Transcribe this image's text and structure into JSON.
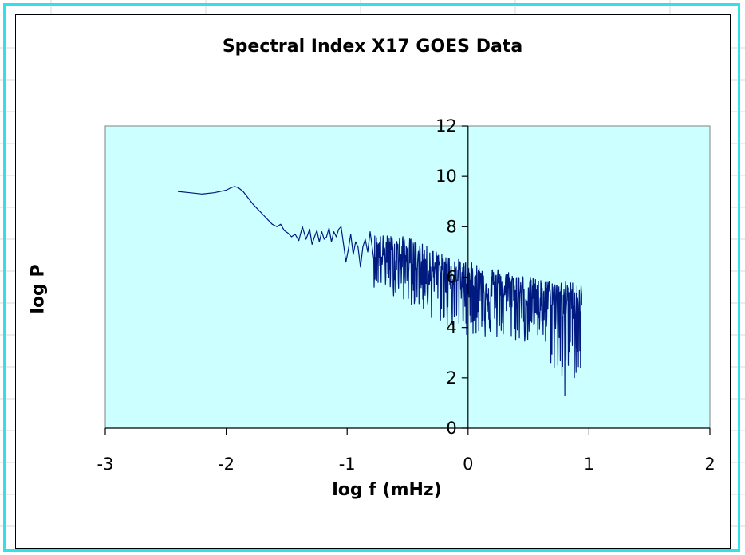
{
  "colors": {
    "plot_background": "#ccffff",
    "series_line": "#001a80",
    "selection_border": "#33e0e8",
    "sheet_gridline": "#d9d9d9"
  },
  "chart_data": {
    "type": "line",
    "title": "Spectral Index X17 GOES Data",
    "xlabel": "log f (mHz)",
    "ylabel": "log P",
    "xlim": [
      -3,
      2
    ],
    "ylim": [
      0,
      12
    ],
    "x_ticks": [
      "-3",
      "-2",
      "-1",
      "0",
      "1",
      "2"
    ],
    "y_ticks": [
      "0",
      "2",
      "4",
      "6",
      "8",
      "10",
      "12"
    ],
    "x_tick_values": [
      -3,
      -2,
      -1,
      0,
      1,
      2
    ],
    "y_tick_values": [
      0,
      2,
      4,
      6,
      8,
      10,
      12
    ],
    "grid": false,
    "legend": "none",
    "axes_cross_at": [
      0,
      0
    ],
    "series": [
      {
        "x": [
          -2.4,
          -2.3,
          -2.2,
          -2.1,
          -2.0,
          -1.96,
          -1.93,
          -1.9,
          -1.86,
          -1.82,
          -1.78,
          -1.74,
          -1.7,
          -1.66,
          -1.62,
          -1.58,
          -1.55,
          -1.52,
          -1.49,
          -1.46,
          -1.43,
          -1.4,
          -1.37,
          -1.34,
          -1.31,
          -1.29,
          -1.27,
          -1.25,
          -1.23,
          -1.21,
          -1.19,
          -1.17,
          -1.15,
          -1.13,
          -1.11,
          -1.09,
          -1.07,
          -1.05,
          -1.03,
          -1.01,
          -0.99,
          -0.97,
          -0.95,
          -0.93,
          -0.91,
          -0.89,
          -0.87,
          -0.85,
          -0.83,
          -0.81,
          -0.79
        ],
        "y": [
          9.4,
          9.35,
          9.3,
          9.35,
          9.45,
          9.55,
          9.6,
          9.55,
          9.4,
          9.15,
          8.9,
          8.7,
          8.5,
          8.3,
          8.1,
          8.0,
          8.1,
          7.85,
          7.75,
          7.6,
          7.7,
          7.45,
          8.0,
          7.5,
          7.9,
          7.3,
          7.6,
          7.85,
          7.4,
          7.8,
          7.5,
          7.6,
          7.95,
          7.4,
          7.8,
          7.6,
          7.9,
          8.0,
          7.3,
          6.6,
          7.1,
          7.7,
          6.9,
          7.4,
          7.2,
          6.4,
          7.2,
          7.5,
          7.0,
          7.8,
          7.1
        ]
      }
    ],
    "noise_region": {
      "x_range": [
        -0.78,
        0.94
      ],
      "upper_envelope": [
        [
          -0.78,
          7.7
        ],
        [
          -0.5,
          7.6
        ],
        [
          -0.2,
          6.9
        ],
        [
          0.0,
          6.6
        ],
        [
          0.3,
          6.3
        ],
        [
          0.6,
          5.9
        ],
        [
          0.94,
          5.8
        ]
      ],
      "lower_envelope": [
        [
          -0.78,
          5.6
        ],
        [
          -0.5,
          5.0
        ],
        [
          -0.2,
          4.0
        ],
        [
          0.0,
          3.7
        ],
        [
          0.3,
          3.4
        ],
        [
          0.6,
          3.3
        ],
        [
          0.8,
          1.3
        ],
        [
          0.94,
          2.3
        ]
      ],
      "trend": [
        [
          -0.78,
          6.9
        ],
        [
          -0.5,
          6.6
        ],
        [
          -0.2,
          6.1
        ],
        [
          0.0,
          5.7
        ],
        [
          0.3,
          5.3
        ],
        [
          0.6,
          5.0
        ],
        [
          0.94,
          4.8
        ]
      ]
    }
  }
}
